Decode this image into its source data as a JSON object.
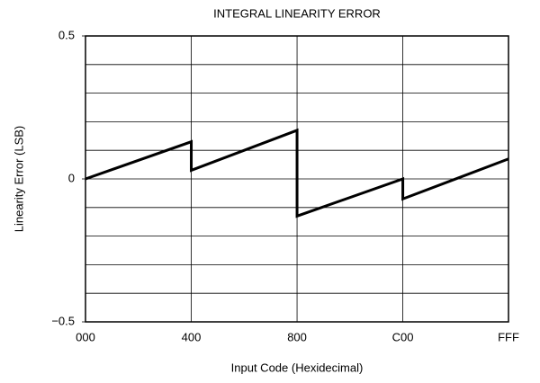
{
  "chart_data": {
    "type": "line",
    "title": "INTEGRAL LINEARITY ERROR",
    "x_label": "Input Code (Hexidecimal)",
    "y_label": "Linearity Error (LSB)",
    "x": [
      0,
      1024,
      1024,
      2048,
      2048,
      3072,
      3072,
      4095
    ],
    "series": [
      {
        "color": "#000000",
        "values": [
          0,
          0.13,
          0.03,
          0.17,
          -0.13,
          0,
          -0.07,
          0.07
        ]
      }
    ],
    "xlim": [
      0,
      4095
    ],
    "xticks": [
      {
        "value": 0,
        "label": "000"
      },
      {
        "value": 1024,
        "label": "400"
      },
      {
        "value": 2048,
        "label": "800"
      },
      {
        "value": 3072,
        "label": "C00"
      },
      {
        "value": 4095,
        "label": "FFF"
      }
    ],
    "ylim": [
      -0.5,
      0.5
    ],
    "yticks": [
      {
        "value": -0.5,
        "label": "−0.5"
      },
      0,
      0.5
    ],
    "ygrid": [
      -0.4,
      -0.3,
      -0.2,
      -0.1,
      0,
      0.1,
      0.2,
      0.3,
      0.4
    ],
    "grid": true
  }
}
